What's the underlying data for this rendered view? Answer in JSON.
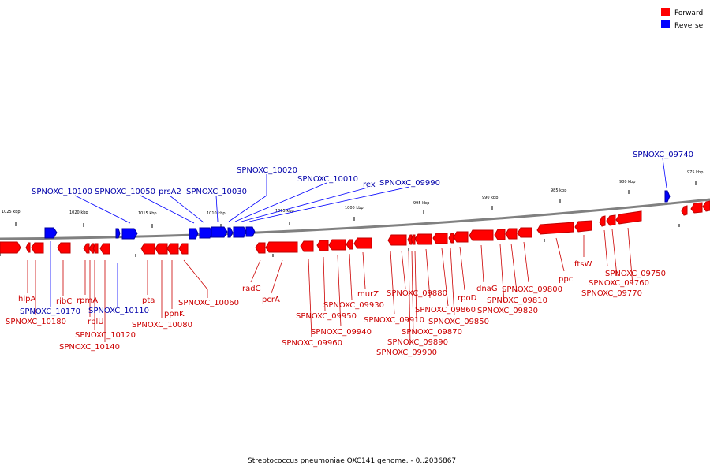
{
  "caption": "Streptococcus pneumoniae OXC141 genome. - 0..2036867",
  "legend": [
    {
      "label": "Forward",
      "color": "#ff0000"
    },
    {
      "label": "Reverse",
      "color": "#0000ff"
    }
  ],
  "colors": {
    "forward": "#ff0000",
    "forward_dark": "#c00000",
    "reverse": "#0000ff",
    "reverse_dark": "#0000a0",
    "forward_label": "#cc0000",
    "reverse_label": "#0000aa",
    "backbone": "#808080"
  },
  "ticks": [
    "1025 kbp",
    "1020 kbp",
    "1015 kbp",
    "1010 kbp",
    "1005 kbp",
    "1000 kbp",
    "995 kbp",
    "990 kbp",
    "985 kbp",
    "980 kbp",
    "975 kbp"
  ],
  "reverse_genes": [
    "SPNOXC_10100",
    "SPNOXC_10050",
    "prsA2",
    "SPNOXC_10030",
    "SPNOXC_10020",
    "SPNOXC_10010",
    "rex",
    "SPNOXC_09990",
    "SPNOXC_09740",
    "SPNOXC_10170",
    "SPNOXC_10110"
  ],
  "forward_genes": [
    "hlpA",
    "SPNOXC_10180",
    "ribC",
    "rpmA",
    "rplU",
    "SPNOXC_10120",
    "SPNOXC_10140",
    "pta",
    "ppnK",
    "SPNOXC_10080",
    "SPNOXC_10060",
    "radC",
    "pcrA",
    "SPNOXC_09960",
    "SPNOXC_09950",
    "SPNOXC_09940",
    "SPNOXC_09930",
    "murZ",
    "SPNOXC_09910",
    "SPNOXC_09880",
    "SPNOXC_09890",
    "SPNOXC_09900",
    "SPNOXC_09870",
    "SPNOXC_09860",
    "SPNOXC_09850",
    "rpoD",
    "dnaG",
    "SPNOXC_09800",
    "SPNOXC_09810",
    "SPNOXC_09820",
    "ppc",
    "ftsW",
    "SPNOXC_09750",
    "SPNOXC_09760",
    "SPNOXC_09770"
  ]
}
